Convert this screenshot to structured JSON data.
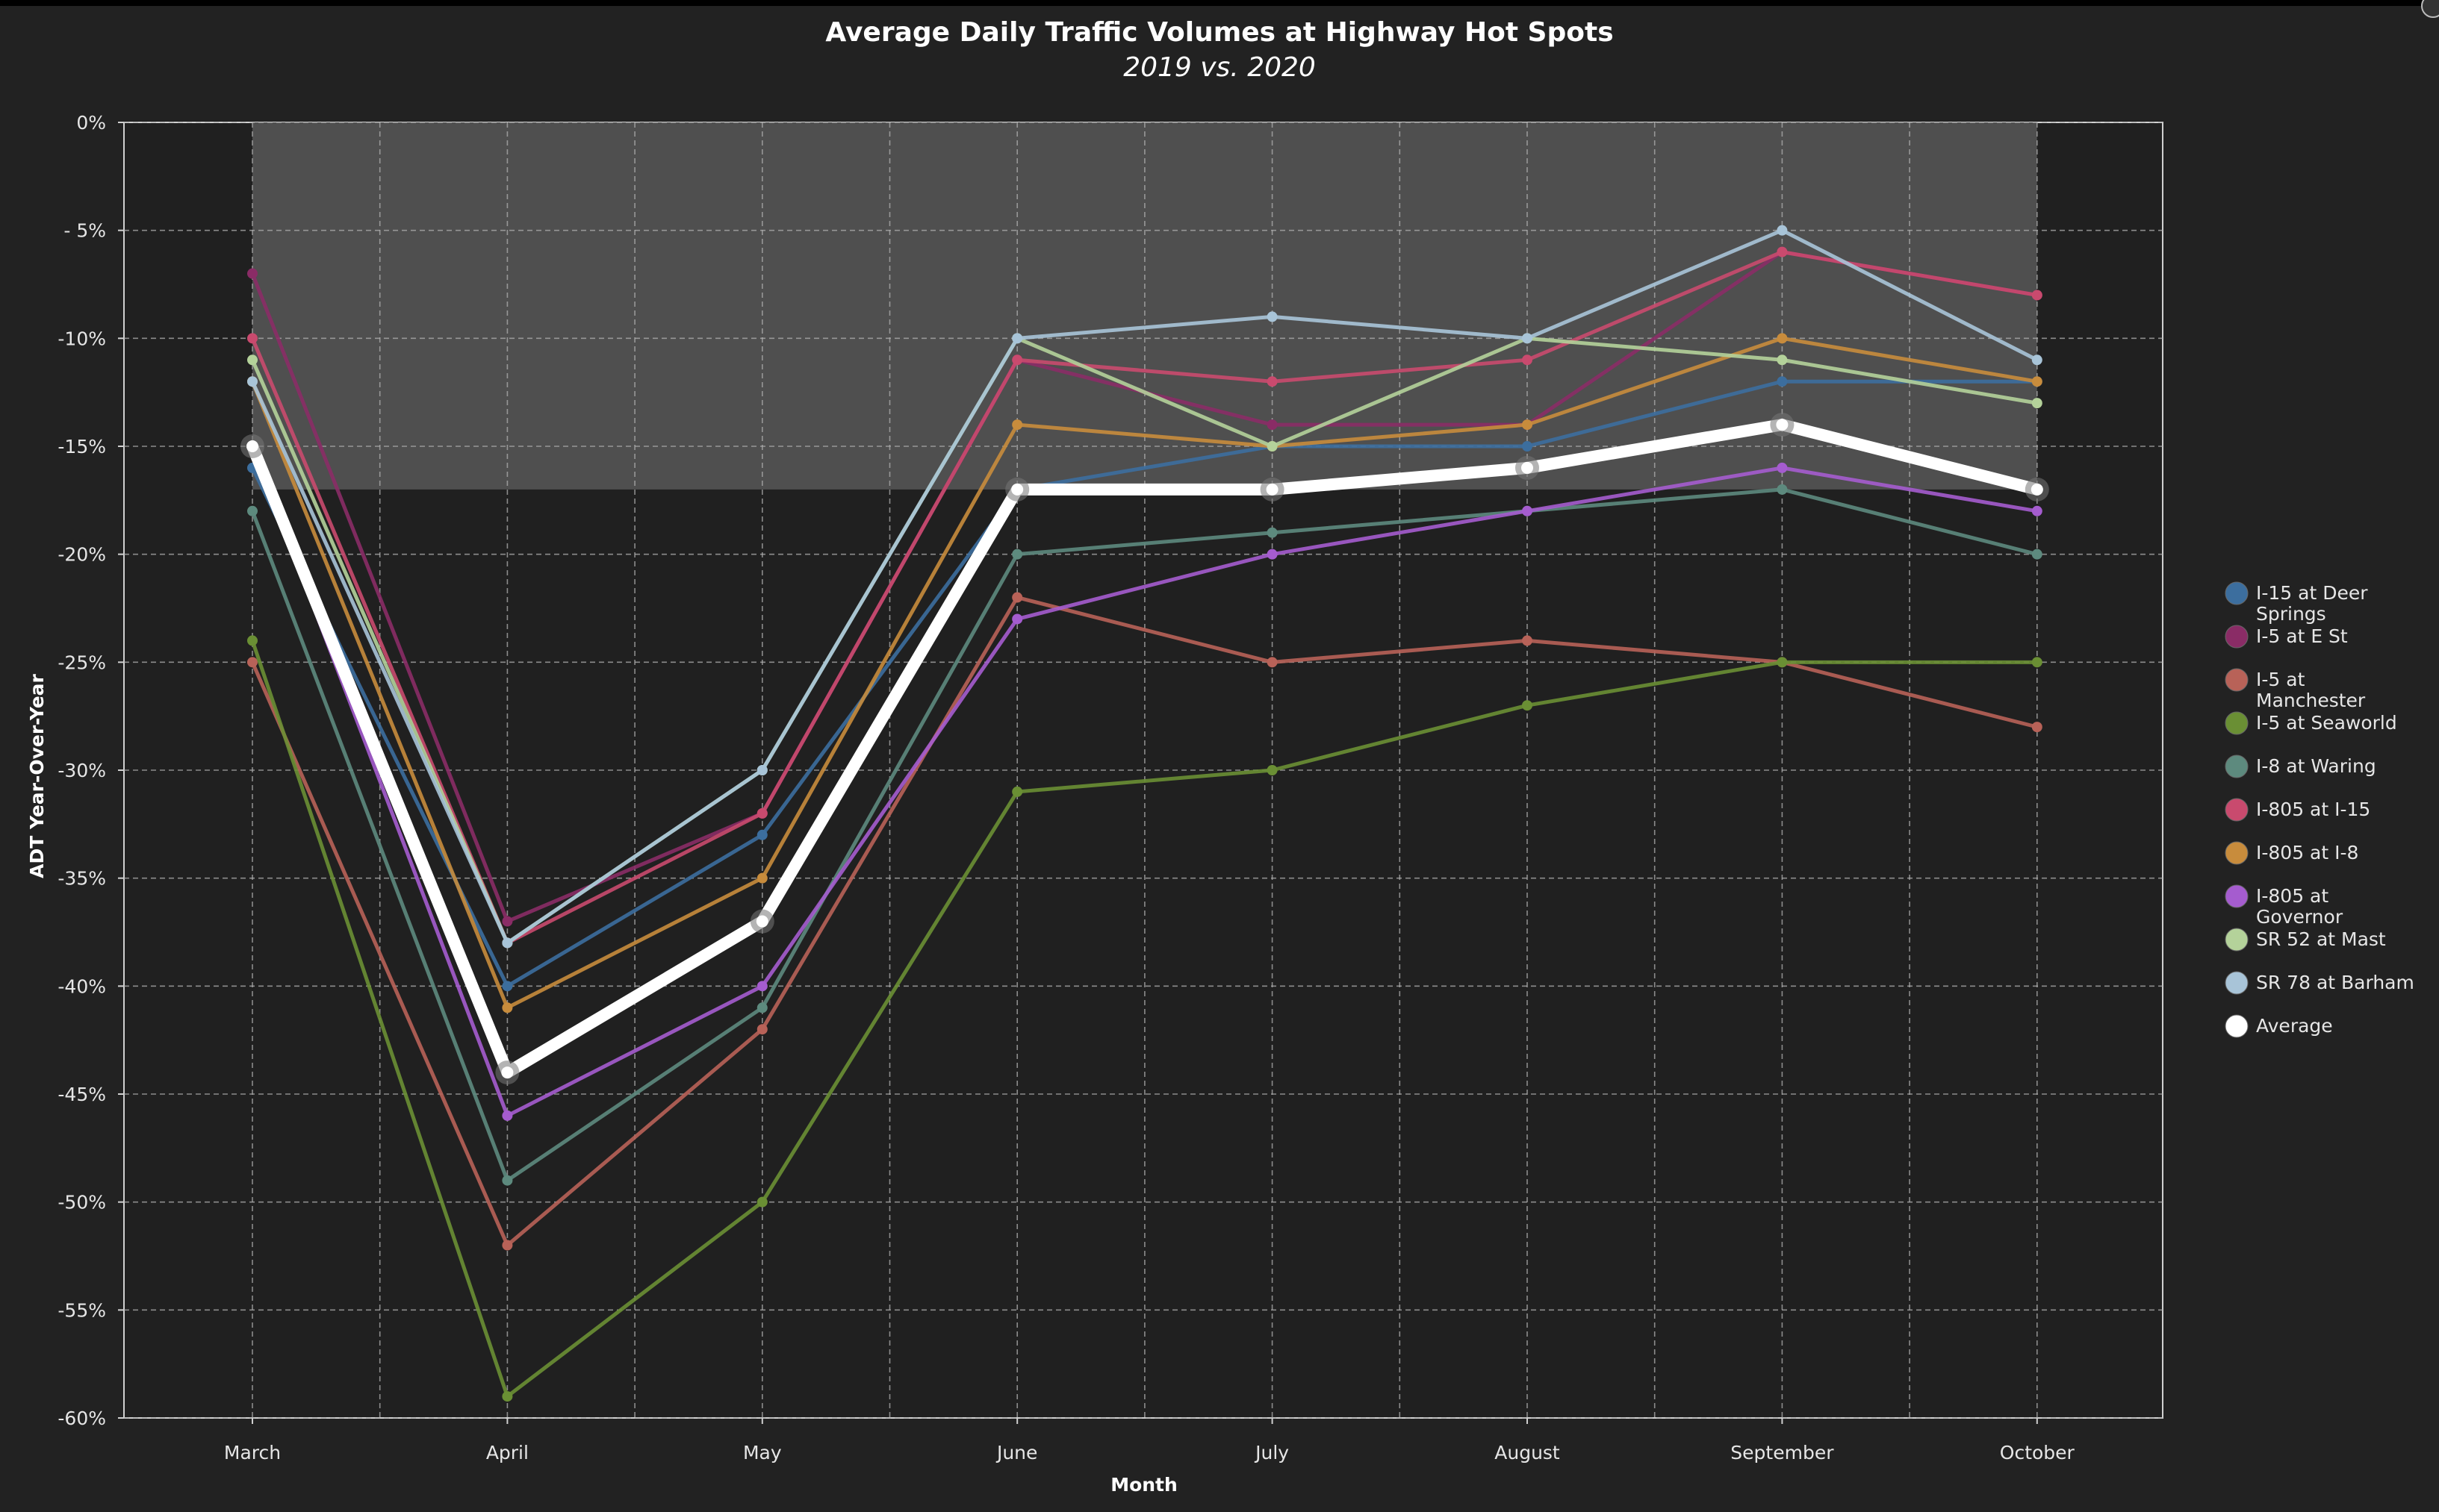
{
  "chart_data": {
    "type": "line",
    "title": "Average Daily Traffic Volumes at Highway Hot Spots",
    "subtitle": "2019 vs. 2020",
    "xlabel": "Month",
    "ylabel": "ADT Year-Over-Year",
    "categories": [
      "March",
      "April",
      "May",
      "June",
      "July",
      "August",
      "September",
      "October"
    ],
    "ylim": [
      -60,
      0
    ],
    "ytick_values": [
      0,
      -5,
      -10,
      -15,
      -20,
      -25,
      -30,
      -35,
      -40,
      -45,
      -50,
      -55,
      -60
    ],
    "ytick_labels": [
      "0%",
      "- 5%",
      "-10%",
      "-15%",
      "-20%",
      "-25%",
      "-30%",
      "-35%",
      "-40%",
      "-45%",
      "-50%",
      "-55%",
      "-60%"
    ],
    "grid": true,
    "shaded_band": {
      "from_category": "March",
      "to_category": "October",
      "y_from": 0,
      "y_to": -17
    },
    "legend_position": "right",
    "series": [
      {
        "name": "I-15 at Deer Springs",
        "color": "#3c6e9e",
        "values": [
          -16,
          -40,
          -33,
          -17,
          -15,
          -15,
          -12,
          -12
        ]
      },
      {
        "name": "I-5 at E St",
        "color": "#8a2c66",
        "values": [
          -7,
          -37,
          -32,
          -11,
          -14,
          -14,
          -6,
          -8
        ]
      },
      {
        "name": "I-5 at Manchester",
        "color": "#b86258",
        "values": [
          -25,
          -52,
          -42,
          -22,
          -25,
          -24,
          -25,
          -28
        ]
      },
      {
        "name": "I-5 at Seaworld",
        "color": "#6a8f34",
        "values": [
          -24,
          -59,
          -50,
          -31,
          -30,
          -27,
          -25,
          -25
        ]
      },
      {
        "name": "I-8 at Waring",
        "color": "#5d8a7e",
        "values": [
          -18,
          -49,
          -41,
          -20,
          -19,
          -18,
          -17,
          -20
        ]
      },
      {
        "name": "I-805 at I-15",
        "color": "#c94a6e",
        "values": [
          -10,
          -38,
          -32,
          -11,
          -12,
          -11,
          -6,
          -8
        ]
      },
      {
        "name": "I-805 at I-8",
        "color": "#c88c3c",
        "values": [
          -12,
          -41,
          -35,
          -14,
          -15,
          -14,
          -10,
          -12
        ]
      },
      {
        "name": "I-805 at Governor",
        "color": "#a55ccf",
        "values": [
          -15,
          -46,
          -40,
          -23,
          -20,
          -18,
          -16,
          -18
        ]
      },
      {
        "name": "SR 52 at Mast",
        "color": "#b4d29a",
        "values": [
          -11,
          -38,
          -30,
          -10,
          -15,
          -10,
          -11,
          -13
        ]
      },
      {
        "name": "SR 78 at Barham",
        "color": "#a8c4d8",
        "values": [
          -12,
          -38,
          -30,
          -10,
          -9,
          -10,
          -5,
          -11
        ]
      },
      {
        "name": "Average",
        "color": "#ffffff",
        "values": [
          -15,
          -44,
          -37,
          -17,
          -17,
          -16,
          -14,
          -17
        ]
      }
    ]
  }
}
